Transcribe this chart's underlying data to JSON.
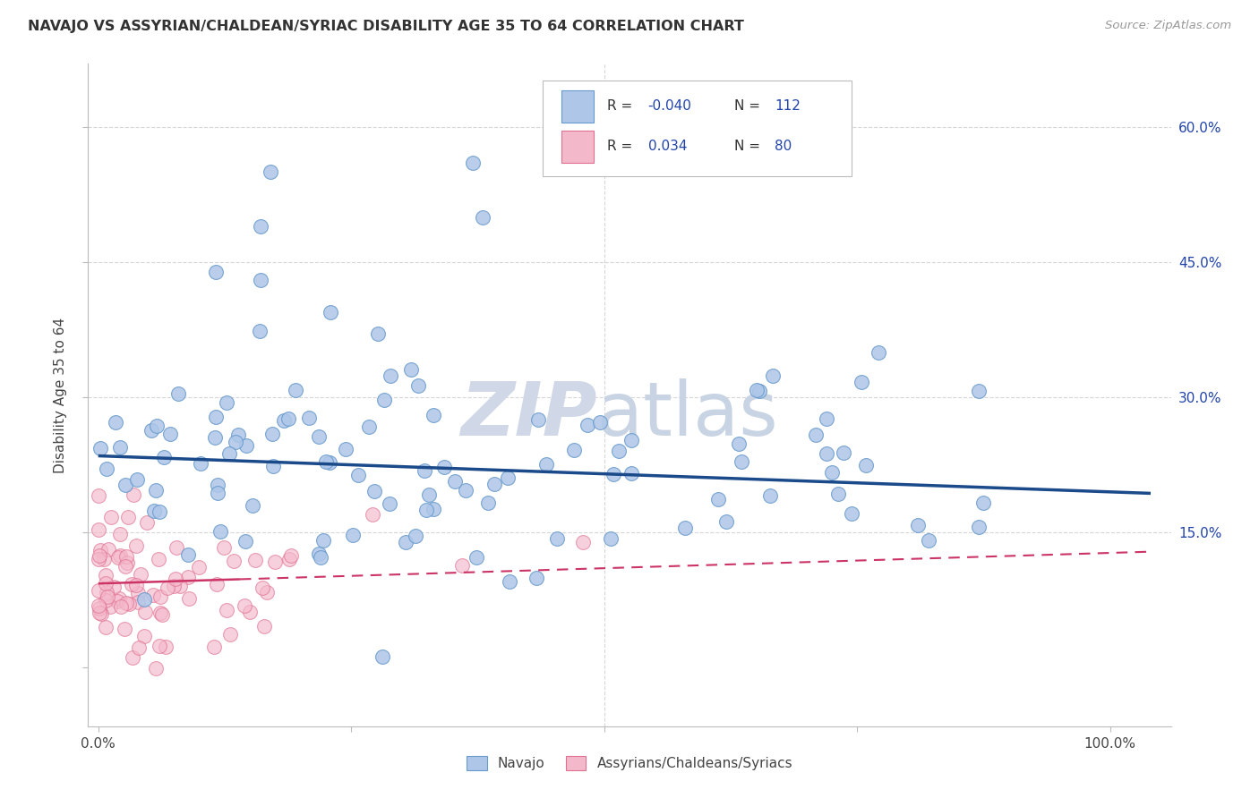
{
  "title": "NAVAJO VS ASSYRIAN/CHALDEAN/SYRIAC DISABILITY AGE 35 TO 64 CORRELATION CHART",
  "source": "Source: ZipAtlas.com",
  "ylabel": "Disability Age 35 to 64",
  "navajo_R": "-0.040",
  "navajo_N": "112",
  "assyrian_R": "0.034",
  "assyrian_N": "80",
  "navajo_color": "#aec6e8",
  "navajo_edge": "#6699cc",
  "assyrian_color": "#f4b8cb",
  "assyrian_edge": "#e07090",
  "trend_navajo_color": "#1a4a8a",
  "trend_assyrian_color": "#cc3366",
  "legend_r_color": "#2244aa",
  "legend_n_color": "#2244aa",
  "watermark_zip_color": "#d0d8e8",
  "watermark_atlas_color": "#c8d4e4",
  "background_color": "#ffffff",
  "grid_color": "#cccccc",
  "xlim": [
    -0.01,
    1.06
  ],
  "ylim": [
    -0.065,
    0.67
  ],
  "yticks": [
    0.0,
    0.15,
    0.3,
    0.45,
    0.6
  ],
  "ytick_labels": [
    "",
    "15.0%",
    "30.0%",
    "45.0%",
    "60.0%"
  ],
  "xticks": [
    0.0,
    0.25,
    0.5,
    0.75,
    1.0
  ],
  "xtick_labels": [
    "0.0%",
    "",
    "",
    "",
    "100.0%"
  ]
}
